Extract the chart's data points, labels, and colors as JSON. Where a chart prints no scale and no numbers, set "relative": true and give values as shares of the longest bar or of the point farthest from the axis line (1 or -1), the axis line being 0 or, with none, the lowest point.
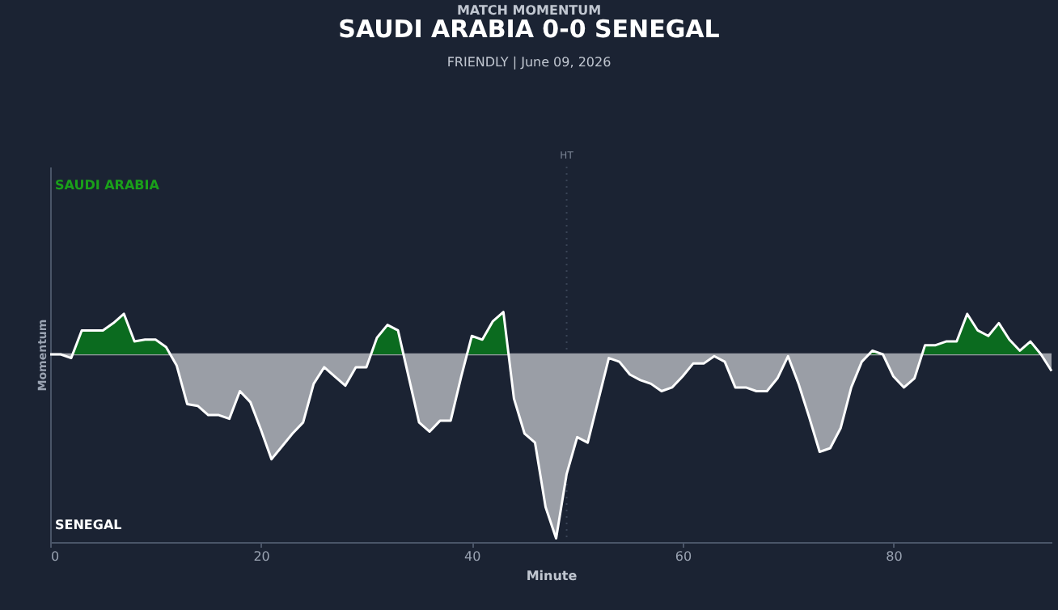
{
  "chart_data": {
    "type": "area",
    "title": "SAUDI ARABIA  0-0  SENEGAL",
    "subtitle": "FRIENDLY | June 09, 2026",
    "xlabel": "Minute",
    "ylabel": "Momentum",
    "annotations": [
      "MATCH MOMENTUM",
      "SAUDI ARABIA",
      "SENEGAL"
    ],
    "relative": true,
    "xlim": [
      0,
      95
    ],
    "xticks": [
      0,
      20,
      40,
      60,
      80
    ],
    "x": [
      0,
      1,
      2,
      3,
      4,
      5,
      6,
      7,
      8,
      9,
      10,
      11,
      12,
      13,
      14,
      15,
      16,
      17,
      18,
      19,
      20,
      21,
      22,
      23,
      24,
      25,
      26,
      27,
      28,
      29,
      30,
      31,
      32,
      33,
      34,
      35,
      36,
      37,
      38,
      39,
      40,
      41,
      42,
      43,
      44,
      45,
      46,
      47,
      48,
      49,
      50,
      51,
      52,
      53,
      54,
      55,
      56,
      57,
      58,
      59,
      60,
      61,
      62,
      63,
      64,
      65,
      66,
      67,
      68,
      69,
      70,
      71,
      72,
      73,
      74,
      75,
      76,
      77,
      78,
      79,
      80,
      81,
      82,
      83,
      84,
      85,
      86,
      87,
      88,
      89,
      90,
      91,
      92,
      93,
      94,
      95
    ],
    "series": [
      {
        "color": "#ffffff",
        "values": [
          0,
          0,
          -0.02,
          0.13,
          0.13,
          0.13,
          0.17,
          0.22,
          0.07,
          0.08,
          0.08,
          0.04,
          -0.06,
          -0.27,
          -0.28,
          -0.33,
          -0.33,
          -0.35,
          -0.2,
          -0.26,
          -0.41,
          -0.57,
          -0.5,
          -0.43,
          -0.37,
          -0.16,
          -0.07,
          -0.12,
          -0.17,
          -0.07,
          -0.07,
          0.09,
          0.16,
          0.13,
          -0.12,
          -0.37,
          -0.42,
          -0.36,
          -0.36,
          -0.12,
          0.1,
          0.08,
          0.18,
          0.23,
          -0.24,
          -0.43,
          -0.48,
          -0.83,
          -1,
          -0.65,
          -0.45,
          -0.48,
          -0.25,
          -0.02,
          -0.04,
          -0.11,
          -0.14,
          -0.16,
          -0.2,
          -0.18,
          -0.12,
          -0.05,
          -0.05,
          -0.01,
          -0.04,
          -0.18,
          -0.18,
          -0.2,
          -0.2,
          -0.13,
          -0.01,
          -0.16,
          -0.34,
          -0.53,
          -0.51,
          -0.4,
          -0.18,
          -0.04,
          0.02,
          0,
          -0.12,
          -0.18,
          -0.13,
          0.05,
          0.05,
          0.07,
          0.07,
          0.22,
          0.13,
          0.1,
          0.17,
          0.08,
          0.02,
          0.07,
          0,
          -0.09
        ]
      }
    ],
    "colors": [
      "#0b6b1f",
      "#9a9ea6"
    ],
    "ref_lines": [
      {
        "axis": "x",
        "value": 49,
        "label": "HT",
        "color": "#3a4456",
        "line_style": "dotted"
      },
      {
        "axis": "y",
        "value": 0,
        "color": "#9a9ea6",
        "line_style": "solid"
      }
    ],
    "line_style": "solid"
  }
}
